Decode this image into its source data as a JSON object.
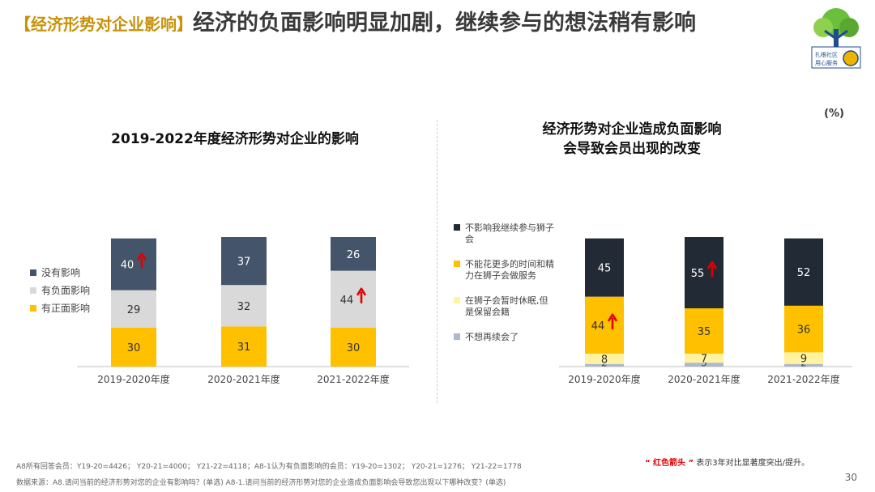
{
  "title": {
    "tag": "【经济形势对企业影响】",
    "text": "经济的负面影响明显加剧，继续参与的想法稍有影响"
  },
  "unit_label": "(%)",
  "logo": {
    "icon": "tree-logo-icon",
    "caption_1": "扎根社区",
    "caption_2": "用心服务"
  },
  "chart_data": [
    {
      "type": "bar",
      "stacked": true,
      "title": "2019-2022年度经济形势对企业的影响",
      "categories": [
        "2019-2020年度",
        "2020-2021年度",
        "2021-2022年度"
      ],
      "series": [
        {
          "name": "有正面影响",
          "color": "#ffc000",
          "values": [
            30,
            31,
            30
          ]
        },
        {
          "name": "有负面影响",
          "color": "#d9d9d9",
          "values": [
            29,
            32,
            44
          ]
        },
        {
          "name": "没有影响",
          "color": "#44546a",
          "values": [
            40,
            37,
            26
          ]
        }
      ],
      "arrows": [
        {
          "series": "没有影响",
          "category": "2019-2020年度"
        },
        {
          "series": "有负面影响",
          "category": "2021-2022年度"
        }
      ],
      "ylim": [
        0,
        100
      ]
    },
    {
      "type": "bar",
      "stacked": true,
      "title_lines": [
        "经济形势对企业造成负面影响",
        "会导致会员出现的改变"
      ],
      "categories": [
        "2019-2020年度",
        "2020-2021年度",
        "2021-2022年度"
      ],
      "series": [
        {
          "name": "不想再续会了",
          "color": "#adb9ca",
          "values": [
            2,
            3,
            2
          ]
        },
        {
          "name": "在狮子会暂时休眠,但是保留会籍",
          "legend_lines": [
            "在狮子会暂时休眠,但",
            "是保留会籍"
          ],
          "color": "#fff2a0",
          "values": [
            8,
            7,
            9
          ]
        },
        {
          "name": "不能花更多的时间和精力在狮子会做服务",
          "legend_lines": [
            "不能花更多的时间和精",
            "力在狮子会做服务"
          ],
          "color": "#ffc000",
          "values": [
            44,
            35,
            36
          ]
        },
        {
          "name": "不影响我继续参与狮子会",
          "legend_lines": [
            "不影响我继续参与狮子",
            "会"
          ],
          "color": "#222a35",
          "values": [
            45,
            55,
            52
          ]
        }
      ],
      "arrows": [
        {
          "series": "不能花更多的时间和精力在狮子会做服务",
          "category": "2019-2020年度"
        },
        {
          "series": "不影响我继续参与狮子会",
          "category": "2020-2021年度"
        }
      ],
      "ylim": [
        0,
        100
      ]
    }
  ],
  "footnotes": {
    "base": "A8所有回答会员：Y19-20=4426；  Y20-21=4000；  Y21-22=4118；A8-1认为有负面影响的会员：Y19-20=1302；  Y20-21=1276；  Y21-22=1778",
    "source": "数据来源：A8.请问当前的经济形势对您的企业有影响吗？(单选) A8-1.请问当前的经济形势对您的企业造成负面影响会导致您出现以下哪种改变？(单选)"
  },
  "arrow_note": {
    "highlight": "“ 红色箭头 ”",
    "text": "表示3年对比显著度突出/提升。"
  },
  "page_number": "30"
}
